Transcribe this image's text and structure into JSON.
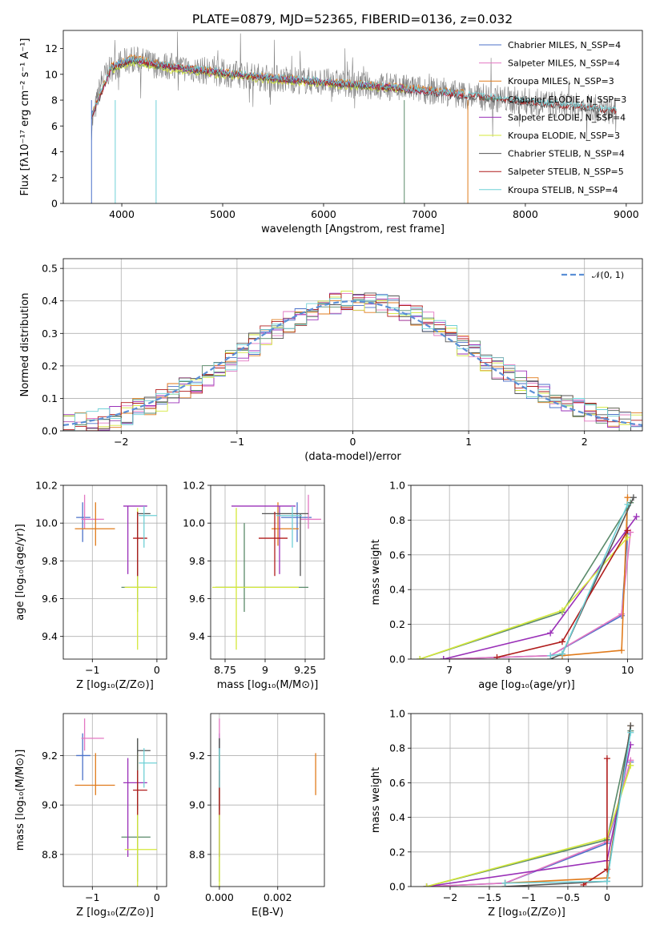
{
  "figure": {
    "title": "PLATE=0879, MJD=52365, FIBERID=0136, z=0.032"
  },
  "chart_data": [
    {
      "id": "spectrum",
      "type": "line",
      "xlabel": "wavelength [Angstrom, rest frame]",
      "ylabel": "Flux [fλ10⁻¹⁷ erg cm⁻² s⁻¹ A⁻¹]",
      "xlim": [
        3420,
        9160
      ],
      "ylim": [
        0,
        13.4
      ],
      "xticks": [
        4000,
        5000,
        6000,
        7000,
        8000,
        9000
      ],
      "yticks": [
        0,
        2,
        4,
        6,
        8,
        10,
        12
      ],
      "grid": false,
      "legend_position": "top-right",
      "series": [
        {
          "name": "Chabrier MILES, N_SSP=4",
          "color": "#4c72c9",
          "x": [
            3700,
            3900,
            4100,
            4500,
            5000,
            5500,
            6000,
            6500,
            7000,
            7400
          ],
          "y": [
            6.8,
            10.6,
            11.2,
            10.6,
            10.1,
            9.7,
            9.4,
            9.1,
            8.8,
            8.5
          ]
        },
        {
          "name": "Salpeter MILES, N_SSP=4",
          "color": "#e377c2",
          "x": [
            3700,
            3900,
            4100,
            4500,
            5000,
            5500,
            6000,
            6500,
            7000,
            7400
          ],
          "y": [
            6.7,
            10.5,
            11.1,
            10.5,
            10.0,
            9.6,
            9.3,
            9.0,
            8.7,
            8.4
          ]
        },
        {
          "name": "Kroupa MILES, N_SSP=3",
          "color": "#e07b1c",
          "x": [
            3700,
            3900,
            4100,
            4500,
            5000,
            5500,
            6000,
            6500,
            7000,
            7400
          ],
          "y": [
            6.9,
            10.7,
            11.3,
            10.7,
            10.2,
            9.8,
            9.5,
            9.2,
            8.9,
            8.6
          ]
        },
        {
          "name": "Chabrier ELODIE, N_SSP=3",
          "color": "#5a8a6a",
          "x": [
            3900,
            4100,
            4500,
            5000,
            5500,
            6000,
            6500,
            6800
          ],
          "y": [
            10.4,
            11.0,
            10.4,
            10.0,
            9.6,
            9.3,
            9.0,
            8.9
          ]
        },
        {
          "name": "Salpeter ELODIE, N_SSP=4",
          "color": "#9a30b8",
          "x": [
            3900,
            4100,
            4500,
            5000,
            5500,
            6000,
            6500,
            6800
          ],
          "y": [
            10.5,
            11.1,
            10.5,
            10.1,
            9.7,
            9.4,
            9.1,
            9.0
          ]
        },
        {
          "name": "Kroupa ELODIE, N_SSP=3",
          "color": "#d4e83a",
          "x": [
            3900,
            4100,
            4500,
            5000,
            5500,
            6000,
            6500,
            6800
          ],
          "y": [
            10.3,
            10.9,
            10.3,
            9.9,
            9.5,
            9.2,
            8.9,
            8.8
          ]
        },
        {
          "name": "Chabrier STELIB, N_SSP=4",
          "color": "#555555",
          "x": [
            3700,
            3900,
            4100,
            4500,
            5000,
            5500,
            6000,
            6500,
            7000,
            7500,
            8000,
            8500,
            8900
          ],
          "y": [
            6.6,
            10.5,
            11.0,
            10.5,
            10.0,
            9.6,
            9.3,
            9.0,
            8.6,
            8.2,
            7.8,
            7.4,
            7.1
          ]
        },
        {
          "name": "Salpeter STELIB, N_SSP=5",
          "color": "#b01c1c",
          "x": [
            3700,
            3900,
            4100,
            4500,
            5000,
            5500,
            6000,
            6500,
            7000,
            7500,
            8000,
            8500,
            8900
          ],
          "y": [
            6.7,
            10.6,
            11.1,
            10.6,
            10.1,
            9.7,
            9.4,
            9.1,
            8.7,
            8.3,
            7.9,
            7.5,
            7.2
          ]
        },
        {
          "name": "Kroupa STELIB, N_SSP=4",
          "color": "#6fd0d6",
          "x": [
            3700,
            3900,
            4100,
            4500,
            5000,
            5500,
            6000,
            6500,
            7000,
            7500,
            8000,
            8500,
            8900
          ],
          "y": [
            6.8,
            10.7,
            11.2,
            10.7,
            10.2,
            9.8,
            9.5,
            9.2,
            8.8,
            8.4,
            8.0,
            7.6,
            7.3
          ]
        },
        {
          "name": "",
          "color": "#808080",
          "x": [
            3700,
            3800,
            3900,
            4100,
            4300,
            4500,
            5000,
            5500,
            6000,
            6500,
            7000,
            7500,
            8000,
            8500,
            8900
          ],
          "y": [
            6.0,
            9.5,
            10.5,
            11.2,
            10.8,
            10.6,
            10.1,
            9.7,
            9.4,
            9.1,
            8.8,
            8.3,
            7.9,
            7.5,
            7.2
          ]
        }
      ]
    },
    {
      "id": "residual-hist",
      "type": "line",
      "xlabel": "(data-model)/error",
      "ylabel": "Normed distribution",
      "xlim": [
        -2.5,
        2.5
      ],
      "ylim": [
        0,
        0.53
      ],
      "xticks": [
        -2,
        -1,
        0,
        1,
        2
      ],
      "yticks": [
        0.0,
        0.1,
        0.2,
        0.3,
        0.4,
        0.5
      ],
      "grid": true,
      "legend": [
        {
          "name": "𝒩(0, 1)",
          "color": "#5b8fd6",
          "style": "dashed"
        }
      ],
      "legend_position": "top-right"
    },
    {
      "id": "age-vs-Z",
      "type": "scatter",
      "xlabel": "Z [log₁₀(Z/Z⊙)]",
      "ylabel": "age  [log₁₀(age/yr)]",
      "xlim": [
        -1.45,
        0.15
      ],
      "ylim": [
        9.28,
        10.2
      ],
      "xticks": [
        -1,
        0
      ],
      "yticks": [
        9.4,
        9.6,
        9.8,
        10.0,
        10.2
      ],
      "grid": true
    },
    {
      "id": "age-vs-mass",
      "type": "scatter",
      "xlabel": "mass [log₁₀(M/M⊙)]",
      "ylabel": "",
      "xlim": [
        8.66,
        9.37
      ],
      "ylim": [
        9.28,
        10.2
      ],
      "xticks": [
        8.75,
        9.0,
        9.25
      ],
      "yticks": [
        9.4,
        9.6,
        9.8,
        10.0,
        10.2
      ],
      "grid": true
    },
    {
      "id": "massweight-vs-age",
      "type": "line",
      "xlabel": "age  [log₁₀(age/yr)]",
      "ylabel": "mass weight",
      "xlim": [
        6.35,
        10.25
      ],
      "ylim": [
        0,
        1.0
      ],
      "xticks": [
        7,
        8,
        9,
        10
      ],
      "yticks": [
        0.0,
        0.2,
        0.4,
        0.6,
        0.8,
        1.0
      ],
      "grid": true
    },
    {
      "id": "mass-vs-Z",
      "type": "scatter",
      "xlabel": "Z [log₁₀(Z/Z⊙)]",
      "ylabel": "mass [log₁₀(M/M⊙)]",
      "xlim": [
        -1.45,
        0.15
      ],
      "ylim": [
        8.67,
        9.37
      ],
      "xticks": [
        -1,
        0
      ],
      "yticks": [
        8.8,
        9.0,
        9.2
      ],
      "grid": true
    },
    {
      "id": "mass-vs-ebv",
      "type": "scatter",
      "xlabel": "E(B-V)",
      "ylabel": "",
      "xlim": [
        -0.0003,
        0.0036
      ],
      "ylim": [
        8.67,
        9.37
      ],
      "xticks": [
        0.0,
        0.002
      ],
      "xticklabels": [
        "0.000",
        "0.002"
      ],
      "yticks": [
        8.8,
        9.0,
        9.2
      ],
      "grid": true
    },
    {
      "id": "massweight-vs-Z",
      "type": "line",
      "xlabel": "Z [log₁₀(Z/Z⊙)]",
      "ylabel": "mass weight",
      "xlim": [
        -2.5,
        0.45
      ],
      "ylim": [
        0,
        1.0
      ],
      "xticks": [
        -2.0,
        -1.5,
        -1.0,
        -0.5,
        0.0
      ],
      "yticks": [
        0.0,
        0.2,
        0.4,
        0.6,
        0.8,
        1.0
      ],
      "grid": true
    }
  ],
  "models": [
    {
      "color": "#4c72c9",
      "age": 10.03,
      "age_err": [
        0.13,
        0.08
      ],
      "Z": -1.15,
      "Z_err": [
        0.1,
        0.12
      ],
      "mass": 9.2,
      "mass_err": [
        0.1,
        0.09
      ],
      "ebv": 0.0,
      "comp_age": [
        6.9,
        8.7,
        9.9,
        10.0
      ],
      "comp_Z": [
        -2.3,
        -1.3,
        0.0,
        0.3
      ],
      "comp_w": [
        0.0,
        0.02,
        0.25,
        0.72
      ]
    },
    {
      "color": "#e377c2",
      "age": 10.02,
      "age_err": [
        0.05,
        0.13
      ],
      "Z": -1.12,
      "Z_err": [
        0.05,
        0.3
      ],
      "mass": 9.27,
      "mass_err": [
        0.05,
        0.08
      ],
      "ebv": 0.0,
      "comp_age": [
        6.9,
        8.7,
        9.9,
        10.05
      ],
      "comp_Z": [
        -2.3,
        -1.3,
        0.0,
        0.3
      ],
      "comp_w": [
        0.0,
        0.02,
        0.26,
        0.73
      ]
    },
    {
      "color": "#e07b1c",
      "age": 9.97,
      "age_err": [
        0.09,
        0.14
      ],
      "Z": -0.95,
      "Z_err": [
        0.32,
        0.3
      ],
      "mass": 9.08,
      "mass_err": [
        0.04,
        0.13
      ],
      "ebv": 0.0033,
      "comp_age": [
        8.9,
        9.9,
        10.0
      ],
      "comp_Z": [
        -1.3,
        0.0,
        0.3
      ],
      "comp_w": [
        0.02,
        0.05,
        0.93
      ]
    },
    {
      "color": "#5a8a6a",
      "age": 9.66,
      "age_err": [
        0.13,
        0.34
      ],
      "Z": -0.3,
      "Z_err": [
        0.25,
        0.2
      ],
      "mass": 8.87,
      "mass_err": [
        0.18,
        0.4
      ],
      "ebv": 0.0,
      "comp_age": [
        6.5,
        8.9,
        10.05
      ],
      "comp_Z": [
        -2.3,
        0.0,
        0.3
      ],
      "comp_w": [
        0.0,
        0.27,
        0.9
      ]
    },
    {
      "color": "#9a30b8",
      "age": 10.09,
      "age_err": [
        0.36,
        0.0
      ],
      "Z": -0.45,
      "Z_err": [
        0.07,
        0.3
      ],
      "mass": 9.09,
      "mass_err": [
        0.3,
        0.1
      ],
      "ebv": 0.0,
      "comp_age": [
        6.9,
        8.7,
        10.15
      ],
      "comp_Z": [
        -2.3,
        0.0,
        0.3
      ],
      "comp_w": [
        0.0,
        0.15,
        0.82
      ]
    },
    {
      "color": "#d4e83a",
      "age": 9.66,
      "age_err": [
        0.33,
        0.42
      ],
      "Z": -0.3,
      "Z_err": [
        0.2,
        0.3
      ],
      "mass": 8.82,
      "mass_err": [
        0.15,
        0.39
      ],
      "ebv": 0.0,
      "comp_age": [
        6.5,
        8.9,
        10.0
      ],
      "comp_Z": [
        -2.3,
        0.0,
        0.3
      ],
      "comp_w": [
        0.0,
        0.28,
        0.7
      ]
    },
    {
      "color": "#555555",
      "age": 10.05,
      "age_err": [
        0.33,
        0.0
      ],
      "Z": -0.3,
      "Z_err": [
        0.0,
        0.2
      ],
      "mass": 9.22,
      "mass_err": [
        0.24,
        0.05
      ],
      "ebv": 0.0,
      "comp_age": [
        8.7,
        8.9,
        10.1
      ],
      "comp_Z": [
        -1.3,
        0.0,
        0.3
      ],
      "comp_w": [
        0.0,
        0.03,
        0.93
      ]
    },
    {
      "color": "#b01c1c",
      "age": 9.92,
      "age_err": [
        0.2,
        0.14
      ],
      "Z": -0.3,
      "Z_err": [
        0.07,
        0.15
      ],
      "mass": 9.06,
      "mass_err": [
        0.1,
        0.08
      ],
      "ebv": 0.0,
      "comp_age": [
        7.8,
        8.9,
        10.0
      ],
      "comp_Z": [
        -0.3,
        0.0,
        0.0
      ],
      "comp_w": [
        0.01,
        0.1,
        0.74
      ]
    },
    {
      "color": "#6fd0d6",
      "age": 10.04,
      "age_err": [
        0.17,
        0.05
      ],
      "Z": -0.2,
      "Z_err": [
        0.08,
        0.2
      ],
      "mass": 9.17,
      "mass_err": [
        0.1,
        0.06
      ],
      "ebv": 0.0,
      "comp_age": [
        8.7,
        8.9,
        10.0
      ],
      "comp_Z": [
        -1.3,
        0.0,
        0.3
      ],
      "comp_w": [
        0.02,
        0.03,
        0.89
      ]
    }
  ]
}
